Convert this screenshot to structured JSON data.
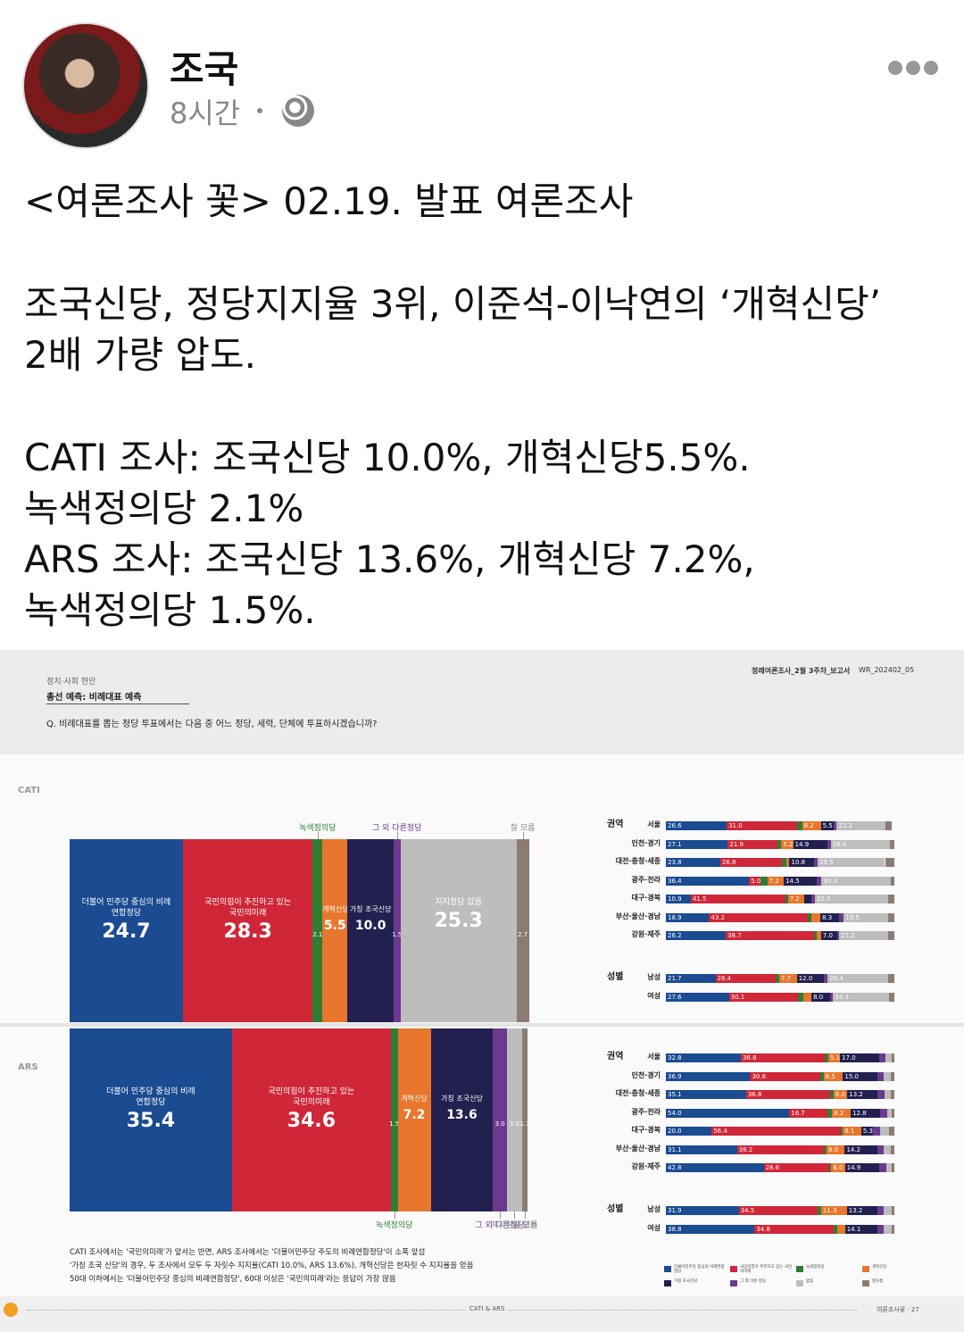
{
  "post": {
    "author": "조국",
    "time": "8시간",
    "paragraphs": [
      [
        "<여론조사 꽃> 02.19. 발표 여론조사"
      ],
      [
        "조국신당, 정당지지율 3위, 이준석-이낙연의 ‘개혁신당’",
        "2배 가량 압도."
      ],
      [
        "CATI 조사: 조국신당 10.0%, 개혁신당5.5%.",
        "녹색정의당 2.1%",
        "ARS 조사: 조국신당 13.6%, 개혁신당 7.2%,",
        "녹색정의당 1.5%."
      ]
    ]
  },
  "report": {
    "section": "정치·사회 현안",
    "subtitle": "총선 예측: 비례대표 예측",
    "question": "Q. 비례대표를 뽑는 정당 투표에서는 다음 중 어느 정당, 세력, 단체에 투표하시겠습니까?",
    "header_right": [
      "정례여론조사_2월 3주차_보고서",
      "WR_202402_05"
    ],
    "footnotes": [
      "CATI 조사에서는 '국민의미래'가 앞서는 반면, ARS 조사에서는 '더불어민주당 주도의 비례연합정당'이 소폭 앞섬",
      "'가칭 조국 신당'의 경우, 두 조사에서 모두 두 자릿수 지지율(CATI 10.0%, ARS 13.6%), 개혁신당은 한자릿 수 지지율을 얻음",
      "50대 이하에서는 '더불어민주당 중심의 비례연합정당', 60대 이상은 '국민의미래'라는 응답이 가장 많음"
    ],
    "footer": [
      "CATI & ARS",
      "여론조사꽃 · 27"
    ]
  },
  "chart_data": [
    {
      "type": "stacked-bar",
      "title": "CATI",
      "xlim": [
        0,
        100
      ],
      "outside_labels": "top",
      "segments": [
        {
          "name": "더불어 민주당 중심의 비례 연합정당",
          "color": "#1b4b91",
          "value": 24.7,
          "value_label": "24.7"
        },
        {
          "name": "국민의힘이 추진하고 있는 국민의미래",
          "color": "#cf2738",
          "value": 28.3,
          "value_label": "28.3"
        },
        {
          "name": "녹색정의당",
          "color": "#2e7d32",
          "value": 2.1,
          "value_label": "2.1"
        },
        {
          "name": "개혁신당",
          "color": "#e8762c",
          "value": 5.5,
          "value_label": "5.5"
        },
        {
          "name": "가칭 조국신당",
          "color": "#22204f",
          "value": 10.0,
          "value_label": "10.0"
        },
        {
          "name": "그 외 다른정당",
          "color": "#6b3a8f",
          "value": 1.5,
          "value_label": "1.5"
        },
        {
          "name": "지지정당 없음",
          "color": "#bdbdbd",
          "value": 25.3,
          "value_label": "25.3"
        },
        {
          "name": "잘 모름",
          "color": "#8c7b72",
          "value": 2.7,
          "value_label": "2.7"
        }
      ]
    },
    {
      "type": "stacked-bar-rows",
      "title": "권역",
      "xlim": [
        0,
        100
      ],
      "categories": [
        "서울",
        "인천·경기",
        "대전·충청·세종",
        "광주·전라",
        "대구·경북",
        "부산·울산·경남",
        "강원·제주"
      ],
      "series": [
        {
          "name": "더불어민주당 중심의 비례연합정당",
          "color": "#1b4b91",
          "values": [
            26.6,
            27.1,
            23.8,
            36.4,
            10.9,
            18.9,
            26.2
          ],
          "value_labels": [
            "26.6",
            "27.1",
            "23.8",
            "36.4",
            "10.9",
            "18.9",
            "26.2"
          ]
        },
        {
          "name": "국민의힘이 추진하고 있는 국민의미래",
          "color": "#cf2738",
          "values": [
            31.0,
            21.9,
            26.8,
            5.0,
            41.5,
            43.2,
            38.7
          ],
          "value_labels": [
            "31.0",
            "21.9",
            "26.8",
            "5.0",
            "41.5",
            "43.2",
            "38.7"
          ]
        },
        {
          "name": "녹색정의당",
          "color": "#2e7d32",
          "values": [
            2.0,
            1.5,
            2.0,
            3.0,
            1.0,
            1.5,
            1.0
          ],
          "value_labels": [
            null,
            null,
            null,
            null,
            null,
            null,
            null
          ]
        },
        {
          "name": "개혁신당",
          "color": "#e8762c",
          "values": [
            8.2,
            5.2,
            1.5,
            7.2,
            7.2,
            4.0,
            2.0
          ],
          "value_labels": [
            "8.2",
            "5.2",
            null,
            "7.2",
            "7.2",
            null,
            null
          ]
        },
        {
          "name": "가칭 조국신당",
          "color": "#22204f",
          "values": [
            5.5,
            14.9,
            10.8,
            14.5,
            3.0,
            8.3,
            7.0
          ],
          "value_labels": [
            "5.5",
            "14.9",
            "10.8",
            "14.5",
            null,
            "8.3",
            "7.0"
          ]
        },
        {
          "name": "그 외 다른 정당",
          "color": "#6b3a8f",
          "values": [
            1.5,
            1.5,
            1.5,
            2.0,
            1.5,
            2.0,
            1.0
          ],
          "value_labels": [
            null,
            null,
            null,
            null,
            null,
            null,
            null
          ]
        },
        {
          "name": "없음",
          "color": "#bdbdbd",
          "values": [
            21.2,
            26.0,
            29.5,
            30.3,
            32.3,
            19.5,
            21.2
          ],
          "value_labels": [
            "21.2",
            "26.0",
            "29.5",
            "30.3",
            "32.3",
            "19.5",
            "21.2"
          ]
        },
        {
          "name": "잘모름",
          "color": "#8c7b72",
          "values": [
            3.0,
            1.9,
            4.1,
            1.6,
            2.6,
            2.6,
            2.9
          ],
          "value_labels": [
            null,
            null,
            null,
            null,
            null,
            null,
            null
          ]
        }
      ]
    },
    {
      "type": "stacked-bar-rows",
      "title": "성별",
      "xlim": [
        0,
        100
      ],
      "categories": [
        "남성",
        "여성"
      ],
      "series": [
        {
          "color": "#1b4b91",
          "values": [
            21.7,
            27.6
          ],
          "value_labels": [
            "21.7",
            "27.6"
          ]
        },
        {
          "color": "#cf2738",
          "values": [
            26.4,
            30.1
          ],
          "value_labels": [
            "26.4",
            "30.1"
          ]
        },
        {
          "color": "#2e7d32",
          "values": [
            1.5,
            2.5
          ],
          "value_labels": [
            null,
            null
          ]
        },
        {
          "color": "#e8762c",
          "values": [
            7.7,
            3.5
          ],
          "value_labels": [
            "7.7",
            null
          ]
        },
        {
          "color": "#22204f",
          "values": [
            12.0,
            8.0
          ],
          "value_labels": [
            "12.0",
            "8.0"
          ]
        },
        {
          "color": "#6b3a8f",
          "values": [
            1.5,
            1.5
          ],
          "value_labels": [
            null,
            null
          ]
        },
        {
          "color": "#bdbdbd",
          "values": [
            26.4,
            24.3
          ],
          "value_labels": [
            "26.4",
            "24.3"
          ]
        },
        {
          "color": "#8c7b72",
          "values": [
            2.8,
            2.5
          ],
          "value_labels": [
            null,
            null
          ]
        }
      ]
    },
    {
      "type": "stacked-bar",
      "title": "ARS",
      "xlim": [
        0,
        100
      ],
      "outside_labels": "bottom",
      "segments": [
        {
          "name": "더불어 민주당 중심의 비례 연합정당",
          "color": "#1b4b91",
          "value": 35.4,
          "value_label": "35.4"
        },
        {
          "name": "국민의힘이 추진하고 있는 국민의미래",
          "color": "#cf2738",
          "value": 34.6,
          "value_label": "34.6"
        },
        {
          "name": "녹색정의당",
          "color": "#2e7d32",
          "value": 1.5,
          "value_label": "1.5"
        },
        {
          "name": "개혁신당",
          "color": "#e8762c",
          "value": 7.2,
          "value_label": "7.2"
        },
        {
          "name": "가칭 조국신당",
          "color": "#22204f",
          "value": 13.6,
          "value_label": "13.6"
        },
        {
          "name": "그 외 다른정당",
          "color": "#6b3a8f",
          "value": 3.0,
          "value_label": "3.0"
        },
        {
          "name": "지지정당 없음",
          "color": "#bdbdbd",
          "value": 3.3,
          "value_label": "3.3"
        },
        {
          "name": "잘 모름",
          "color": "#8c7b72",
          "value": 1.3,
          "value_label": "1.3"
        }
      ]
    },
    {
      "type": "stacked-bar-rows",
      "title": "권역",
      "xlim": [
        0,
        100
      ],
      "categories": [
        "서울",
        "인천·경기",
        "대전·충청·세종",
        "광주·전라",
        "대구·경북",
        "부산·울산·경남",
        "강원·제주"
      ],
      "series": [
        {
          "color": "#1b4b91",
          "values": [
            32.8,
            36.9,
            35.1,
            54.0,
            20.0,
            31.1,
            42.8
          ],
          "value_labels": [
            "32.8",
            "36.9",
            "35.1",
            "54.0",
            "20.0",
            "31.1",
            "42.8"
          ]
        },
        {
          "color": "#cf2738",
          "values": [
            36.8,
            30.6,
            36.8,
            16.7,
            56.4,
            38.2,
            28.6
          ],
          "value_labels": [
            "36.8",
            "30.6",
            "36.8",
            "16.7",
            "56.4",
            "38.2",
            "28.6"
          ]
        },
        {
          "color": "#2e7d32",
          "values": [
            1.5,
            1.5,
            1.5,
            2.0,
            1.0,
            1.0,
            1.0
          ],
          "value_labels": [
            null,
            null,
            null,
            null,
            null,
            null,
            null
          ]
        },
        {
          "color": "#e8762c",
          "values": [
            5.1,
            8.5,
            6.0,
            8.2,
            8.1,
            8.0,
            6.0
          ],
          "value_labels": [
            "5.1",
            "8.5",
            "6.0",
            "8.2",
            "8.1",
            "8.0",
            "6.0"
          ]
        },
        {
          "color": "#22204f",
          "values": [
            17.0,
            15.0,
            13.2,
            12.8,
            5.3,
            14.2,
            14.9
          ],
          "value_labels": [
            "17.0",
            "15.0",
            "13.2",
            "12.8",
            "5.3",
            "14.2",
            "14.9"
          ]
        },
        {
          "color": "#6b3a8f",
          "values": [
            3.0,
            3.0,
            3.0,
            3.0,
            3.0,
            3.0,
            3.0
          ],
          "value_labels": [
            null,
            null,
            null,
            null,
            null,
            null,
            null
          ]
        },
        {
          "color": "#bdbdbd",
          "values": [
            2.5,
            3.0,
            3.0,
            2.0,
            4.0,
            3.0,
            2.5
          ],
          "value_labels": [
            null,
            null,
            null,
            null,
            null,
            null,
            null
          ]
        },
        {
          "color": "#8c7b72",
          "values": [
            1.3,
            1.5,
            1.4,
            1.3,
            2.2,
            1.5,
            1.2
          ],
          "value_labels": [
            null,
            null,
            null,
            null,
            null,
            null,
            null
          ]
        }
      ]
    },
    {
      "type": "stacked-bar-rows",
      "title": "성별",
      "xlim": [
        0,
        100
      ],
      "categories": [
        "남성",
        "여성"
      ],
      "series": [
        {
          "color": "#1b4b91",
          "values": [
            31.9,
            38.8
          ],
          "value_labels": [
            "31.9",
            "38.8"
          ]
        },
        {
          "color": "#cf2738",
          "values": [
            34.5,
            34.8
          ],
          "value_labels": [
            "34.5",
            "34.8"
          ]
        },
        {
          "color": "#2e7d32",
          "values": [
            1.5,
            1.5
          ],
          "value_labels": [
            null,
            null
          ]
        },
        {
          "color": "#e8762c",
          "values": [
            11.3,
            3.3
          ],
          "value_labels": [
            "11.3",
            null
          ]
        },
        {
          "color": "#22204f",
          "values": [
            13.2,
            14.1
          ],
          "value_labels": [
            "13.2",
            "14.1"
          ]
        },
        {
          "color": "#6b3a8f",
          "values": [
            3.0,
            3.0
          ],
          "value_labels": [
            null,
            null
          ]
        },
        {
          "color": "#bdbdbd",
          "values": [
            3.3,
            3.3
          ],
          "value_labels": [
            null,
            null
          ]
        },
        {
          "color": "#8c7b72",
          "values": [
            1.3,
            1.2
          ],
          "value_labels": [
            null,
            null
          ]
        }
      ]
    }
  ]
}
